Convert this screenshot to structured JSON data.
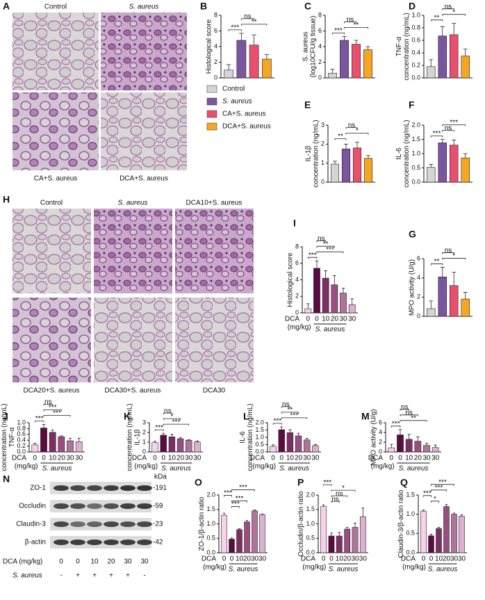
{
  "figure": {
    "panel_A": {
      "letter": "A",
      "labels": [
        {
          "text": "Control"
        },
        {
          "text": "S. aureus",
          "italic": true
        },
        {
          "text": "CA+S. aureus"
        },
        {
          "text": "DCA+S. aureus"
        }
      ]
    },
    "legend": {
      "entries": [
        {
          "name": "Control",
          "color": "#d4d4d4"
        },
        {
          "name": "S. aureus",
          "color": "#7b559f",
          "italic": true
        },
        {
          "name": "CA+S. aureus",
          "color": "#e8506e"
        },
        {
          "name": "DCA+S. aureus",
          "color": "#f5a623"
        }
      ]
    },
    "panel_H": {
      "letter": "H",
      "labels": [
        {
          "text": "Control"
        },
        {
          "text": "S. aureus",
          "italic": true
        },
        {
          "text": "DCA10+S. aureus"
        },
        {
          "text": "DCA20+S. aureus"
        },
        {
          "text": "DCA30+S. aureus"
        },
        {
          "text": "DCA30"
        }
      ]
    },
    "panel_N": {
      "letter": "N",
      "unit": "kDa",
      "bands": [
        {
          "name": "ZO-1",
          "mw": "-191"
        },
        {
          "name": "Occludin",
          "mw": "-59"
        },
        {
          "name": "Claudin-3",
          "mw": "-23"
        },
        {
          "name": "β-actin",
          "mw": "-42"
        }
      ],
      "dose_label": "DCA (mg/kg)",
      "doses": [
        "0",
        "0",
        "10",
        "20",
        "30",
        "30"
      ],
      "infection_label": "S. aureus",
      "infection": [
        "-",
        "+",
        "+",
        "+",
        "+",
        "-"
      ]
    }
  },
  "chart_data": [
    {
      "type": "bar",
      "letter": "B",
      "ylabel": [
        "Histological score"
      ],
      "values": [
        1.0,
        4.8,
        4.2,
        2.4
      ],
      "errors": [
        0.7,
        0.9,
        1.3,
        0.6
      ],
      "colors": [
        "#d4d4d4",
        "#7b559f",
        "#e8506e",
        "#f5a623"
      ],
      "ylim": [
        0,
        8
      ],
      "yticks": [
        0,
        2,
        4,
        6,
        8
      ],
      "significance": [
        {
          "label": "***",
          "between": [
            0,
            1
          ]
        },
        {
          "label": "**",
          "between": [
            1,
            3
          ]
        },
        {
          "label": "ns",
          "between": [
            1,
            2
          ]
        }
      ]
    },
    {
      "type": "bar",
      "letter": "C",
      "ylabel": [
        "S. aureus",
        "(log10CFU/g tissue)"
      ],
      "values": [
        0.6,
        4.8,
        4.3,
        3.6
      ],
      "errors": [
        0.5,
        0.5,
        0.5,
        0.4
      ],
      "colors": [
        "#d4d4d4",
        "#7b559f",
        "#e8506e",
        "#f5a623"
      ],
      "ylim": [
        0,
        8
      ],
      "yticks": [
        0,
        2,
        4,
        6,
        8
      ],
      "significance": [
        {
          "label": "***",
          "between": [
            0,
            1
          ]
        },
        {
          "label": "**",
          "between": [
            1,
            3
          ]
        },
        {
          "label": "ns",
          "between": [
            1,
            2
          ]
        }
      ]
    },
    {
      "type": "bar",
      "letter": "D",
      "ylabel": [
        "TNF-α",
        "concentration (ng/mL)"
      ],
      "values": [
        0.18,
        0.67,
        0.69,
        0.35
      ],
      "errors": [
        0.11,
        0.15,
        0.18,
        0.11
      ],
      "colors": [
        "#d4d4d4",
        "#7b559f",
        "#e8506e",
        "#f5a623"
      ],
      "ylim": [
        0,
        1
      ],
      "yticks": [
        {
          "value": 0,
          "label": "0.0"
        },
        0.2,
        0.4,
        0.6,
        0.8,
        {
          "value": 1,
          "label": "1.0"
        }
      ],
      "significance": [
        {
          "label": "**",
          "between": [
            0,
            1
          ]
        },
        {
          "label": "*",
          "between": [
            1,
            3
          ]
        },
        {
          "label": "ns",
          "between": [
            1,
            2
          ]
        }
      ]
    },
    {
      "type": "bar",
      "letter": "E",
      "ylabel": [
        "IL-1β",
        "concentration (ng/mL)"
      ],
      "values": [
        0.95,
        1.75,
        1.8,
        1.25
      ],
      "errors": [
        0.15,
        0.25,
        0.3,
        0.15
      ],
      "colors": [
        "#d4d4d4",
        "#7b559f",
        "#e8506e",
        "#f5a623"
      ],
      "ylim": [
        0,
        3
      ],
      "yticks": [
        0,
        1,
        2,
        3
      ],
      "significance": [
        {
          "label": "**",
          "between": [
            0,
            1
          ]
        },
        {
          "label": "*",
          "between": [
            1,
            3
          ]
        },
        {
          "label": "ns",
          "between": [
            1,
            2
          ]
        }
      ]
    },
    {
      "type": "bar",
      "letter": "F",
      "ylabel": [
        "IL-6",
        "concentration (ng/mL)"
      ],
      "values": [
        0.52,
        1.38,
        1.3,
        0.85
      ],
      "errors": [
        0.1,
        0.12,
        0.18,
        0.15
      ],
      "colors": [
        "#d4d4d4",
        "#7b559f",
        "#e8506e",
        "#f5a623"
      ],
      "ylim": [
        0,
        2
      ],
      "yticks": [
        {
          "value": 0,
          "label": "0.0"
        },
        0.5,
        {
          "value": 1,
          "label": "1.0"
        },
        1.5,
        {
          "value": 2,
          "label": "2.0"
        }
      ],
      "significance": [
        {
          "label": "***",
          "between": [
            0,
            1
          ]
        },
        {
          "label": "ns",
          "between": [
            1,
            2
          ]
        },
        {
          "label": "***",
          "between": [
            1,
            3
          ]
        }
      ]
    },
    {
      "type": "bar",
      "letter": "G",
      "ylabel": [
        "MPO activity (U/g)"
      ],
      "values": [
        0.8,
        4.1,
        3.2,
        1.8
      ],
      "errors": [
        0.8,
        1.0,
        1.4,
        0.7
      ],
      "colors": [
        "#d4d4d4",
        "#7b559f",
        "#e8506e",
        "#f5a623"
      ],
      "ylim": [
        0,
        6
      ],
      "yticks": [
        0,
        2,
        4,
        6
      ],
      "significance": [
        {
          "label": "**",
          "between": [
            0,
            1
          ]
        },
        {
          "label": "*",
          "between": [
            1,
            3
          ]
        },
        {
          "label": "ns",
          "between": [
            1,
            2
          ]
        }
      ]
    },
    {
      "type": "bar",
      "letter": "I",
      "ylabel": [
        "Histological score"
      ],
      "categories": [
        "0",
        "0",
        "10",
        "20",
        "30",
        "30"
      ],
      "xlabel": [
        "DCA",
        "(mg/kg)"
      ],
      "group_label": "S. aureus",
      "group_span": [
        1,
        4
      ],
      "values": [
        0.5,
        5.4,
        4.2,
        3.4,
        2.4,
        1.0
      ],
      "errors": [
        0.6,
        0.9,
        0.9,
        1.1,
        0.6,
        0.7
      ],
      "colors": [
        "#f9d2ea",
        "#5c0b41",
        "#7d2e63",
        "#9a4d80",
        "#b27399",
        "#ddb0d2"
      ],
      "ylim": [
        0,
        8
      ],
      "yticks": [
        0,
        2,
        4,
        6,
        8
      ],
      "significance": [
        {
          "label": "***",
          "between": [
            0,
            1
          ]
        },
        {
          "label": "***",
          "between": [
            1,
            4
          ]
        },
        {
          "label": "**",
          "between": [
            1,
            3
          ]
        },
        {
          "label": "ns",
          "between": [
            1,
            2
          ]
        }
      ]
    },
    {
      "type": "bar",
      "letter": "J",
      "ylabel": [
        "concentration (ng/mL)",
        "TNF-α"
      ],
      "categories": [
        "0",
        "0",
        "10",
        "20",
        "30",
        "30"
      ],
      "xlabel": [
        "DCA",
        "(mg/kg)"
      ],
      "group_label": "S. aureus",
      "group_span": [
        1,
        4
      ],
      "values": [
        0.24,
        0.82,
        0.67,
        0.52,
        0.38,
        0.35
      ],
      "errors": [
        0.06,
        0.12,
        0.08,
        0.03,
        0.09,
        0.12
      ],
      "colors": [
        "#f9d2ea",
        "#5c0b41",
        "#7d2e63",
        "#9a4d80",
        "#b27399",
        "#ddb0d2"
      ],
      "ylim": [
        0,
        1
      ],
      "yticks": [
        {
          "value": 0,
          "label": "0.0"
        },
        0.2,
        0.4,
        0.6,
        0.8,
        {
          "value": 1,
          "label": "1.0"
        }
      ],
      "significance": [
        {
          "label": "***",
          "between": [
            0,
            1
          ]
        },
        {
          "label": "***",
          "between": [
            1,
            4
          ]
        },
        {
          "label": "***",
          "between": [
            1,
            3
          ]
        },
        {
          "label": "ns",
          "between": [
            1,
            2
          ]
        }
      ]
    },
    {
      "type": "bar",
      "letter": "K",
      "ylabel": [
        "concentration (ng/mL)",
        "IL-1β"
      ],
      "categories": [
        "0",
        "0",
        "10",
        "20",
        "30",
        "30"
      ],
      "xlabel": [
        "DCA",
        "(mg/kg)"
      ],
      "group_label": "S. aureus",
      "group_span": [
        1,
        4
      ],
      "values": [
        0.95,
        1.72,
        1.55,
        1.35,
        1.2,
        1.02
      ],
      "errors": [
        0.15,
        0.2,
        0.25,
        0.1,
        0.05,
        0.1
      ],
      "colors": [
        "#f9d2ea",
        "#5c0b41",
        "#7d2e63",
        "#9a4d80",
        "#b27399",
        "#ddb0d2"
      ],
      "ylim": [
        0,
        3
      ],
      "yticks": [
        0,
        1,
        2,
        3
      ],
      "significance": [
        {
          "label": "***",
          "between": [
            0,
            1
          ]
        },
        {
          "label": "***",
          "between": [
            1,
            4
          ]
        },
        {
          "label": "*",
          "between": [
            1,
            3
          ]
        },
        {
          "label": "ns",
          "between": [
            1,
            2
          ]
        }
      ]
    },
    {
      "type": "bar",
      "letter": "L",
      "ylabel": [
        "IL-6",
        "concentration (ng/mL)"
      ],
      "categories": [
        "0",
        "0",
        "10",
        "20",
        "30",
        "30"
      ],
      "xlabel": [
        "DCA",
        "(mg/kg)"
      ],
      "group_label": "S. aureus",
      "group_span": [
        1,
        4
      ],
      "values": [
        0.38,
        1.52,
        1.32,
        1.1,
        0.82,
        0.43
      ],
      "errors": [
        0.1,
        0.2,
        0.2,
        0.18,
        0.1,
        0.08
      ],
      "colors": [
        "#f9d2ea",
        "#5c0b41",
        "#7d2e63",
        "#9a4d80",
        "#b27399",
        "#ddb0d2"
      ],
      "ylim": [
        0,
        2
      ],
      "yticks": [
        {
          "value": 0,
          "label": "0.0"
        },
        0.5,
        {
          "value": 1,
          "label": "1.0"
        },
        1.5,
        {
          "value": 2,
          "label": "2.0"
        }
      ],
      "significance": [
        {
          "label": "***",
          "between": [
            0,
            1
          ]
        },
        {
          "label": "***",
          "between": [
            1,
            4
          ]
        },
        {
          "label": "**",
          "between": [
            1,
            3
          ]
        },
        {
          "label": "ns",
          "between": [
            1,
            2
          ]
        }
      ]
    },
    {
      "type": "bar",
      "letter": "M",
      "ylabel": [
        "MPO activity (U/g)"
      ],
      "categories": [
        "0",
        "0",
        "10",
        "20",
        "30",
        "30"
      ],
      "xlabel": [
        "DCA",
        "(mg/kg)"
      ],
      "group_label": "S. aureus",
      "group_span": [
        1,
        4
      ],
      "values": [
        0.85,
        3.5,
        2.6,
        2.2,
        1.35,
        0.9
      ],
      "errors": [
        0.7,
        1.1,
        1.0,
        0.9,
        0.45,
        0.5
      ],
      "colors": [
        "#f9d2ea",
        "#5c0b41",
        "#7d2e63",
        "#9a4d80",
        "#b27399",
        "#ddb0d2"
      ],
      "ylim": [
        0,
        6
      ],
      "yticks": [
        0,
        2,
        4,
        6
      ],
      "significance": [
        {
          "label": "***",
          "between": [
            0,
            1
          ]
        },
        {
          "label": "**",
          "between": [
            1,
            4
          ]
        },
        {
          "label": "ns",
          "between": [
            1,
            3
          ]
        },
        {
          "label": "ns",
          "between": [
            1,
            2
          ]
        }
      ]
    },
    {
      "type": "bar",
      "letter": "O",
      "ylabel": [
        "ZO-1/β-actin ratio"
      ],
      "categories": [
        "0",
        "0",
        "10",
        "20",
        "30",
        "30"
      ],
      "xlabel": [
        "DCA",
        "(mg/kg)"
      ],
      "group_label": "S. aureus",
      "group_span": [
        1,
        4
      ],
      "values": [
        1.3,
        0.47,
        0.8,
        1.07,
        1.45,
        1.32
      ],
      "errors": [
        0.07,
        0.04,
        0.03,
        0.05,
        0.03,
        0.03
      ],
      "colors": [
        "#f9d2ea",
        "#5c0b41",
        "#7d2e63",
        "#9a4d80",
        "#b27399",
        "#ddb0d2"
      ],
      "ylim": [
        0,
        2
      ],
      "yticks": [
        {
          "value": 0,
          "label": "0.0"
        },
        0.5,
        {
          "value": 1,
          "label": "1.0"
        },
        1.5,
        {
          "value": 2,
          "label": "2.0"
        }
      ],
      "significance": [
        {
          "label": "***",
          "between": [
            1,
            2
          ]
        },
        {
          "label": "***",
          "between": [
            1,
            3
          ]
        },
        {
          "label": "***",
          "between": [
            0,
            1
          ]
        },
        {
          "label": "***",
          "between": [
            1,
            4
          ]
        }
      ]
    },
    {
      "type": "bar",
      "letter": "P",
      "ylabel": [
        "Occludin/β-actin ratio"
      ],
      "categories": [
        "0",
        "0",
        "10",
        "20",
        "30",
        "30"
      ],
      "xlabel": [
        "DCA",
        "(mg/kg)"
      ],
      "group_label": "S. aureus",
      "group_span": [
        1,
        4
      ],
      "values": [
        1.6,
        0.58,
        0.58,
        0.82,
        0.88,
        1.25
      ],
      "errors": [
        0.06,
        0.1,
        0.12,
        0.06,
        0.15,
        0.3
      ],
      "colors": [
        "#f9d2ea",
        "#5c0b41",
        "#7d2e63",
        "#9a4d80",
        "#b27399",
        "#ddb0d2"
      ],
      "ylim": [
        0,
        2
      ],
      "yticks": [
        {
          "value": 0,
          "label": "0.0"
        },
        0.5,
        {
          "value": 1,
          "label": "1.0"
        },
        1.5,
        {
          "value": 2,
          "label": "2.0"
        }
      ],
      "significance": [
        {
          "label": "ns",
          "between": [
            1,
            2
          ]
        },
        {
          "label": "ns",
          "between": [
            1,
            3
          ]
        },
        {
          "label": "*",
          "between": [
            1,
            4
          ]
        },
        {
          "label": "***",
          "between": [
            0,
            1
          ]
        }
      ]
    },
    {
      "type": "bar",
      "letter": "Q",
      "ylabel": [
        "Claudin-3/β-actin ratio"
      ],
      "categories": [
        "0",
        "0",
        "10",
        "20",
        "30",
        "30"
      ],
      "xlabel": [
        "DCA",
        "(mg/kg)"
      ],
      "group_label": "S. aureus",
      "group_span": [
        1,
        4
      ],
      "values": [
        1.08,
        0.44,
        0.63,
        1.2,
        1.0,
        0.95
      ],
      "errors": [
        0.03,
        0.04,
        0.03,
        0.05,
        0.03,
        0.04
      ],
      "colors": [
        "#f9d2ea",
        "#5c0b41",
        "#7d2e63",
        "#9a4d80",
        "#b27399",
        "#ddb0d2"
      ],
      "ylim": [
        0,
        1.5
      ],
      "yticks": [
        {
          "value": 0,
          "label": "0.0"
        },
        0.5,
        {
          "value": 1,
          "label": "1.0"
        },
        1.5
      ],
      "significance": [
        {
          "label": "*",
          "between": [
            1,
            2
          ]
        },
        {
          "label": "***",
          "between": [
            0,
            1
          ]
        },
        {
          "label": "***",
          "between": [
            1,
            3
          ]
        },
        {
          "label": "***",
          "between": [
            1,
            4
          ]
        }
      ]
    }
  ]
}
